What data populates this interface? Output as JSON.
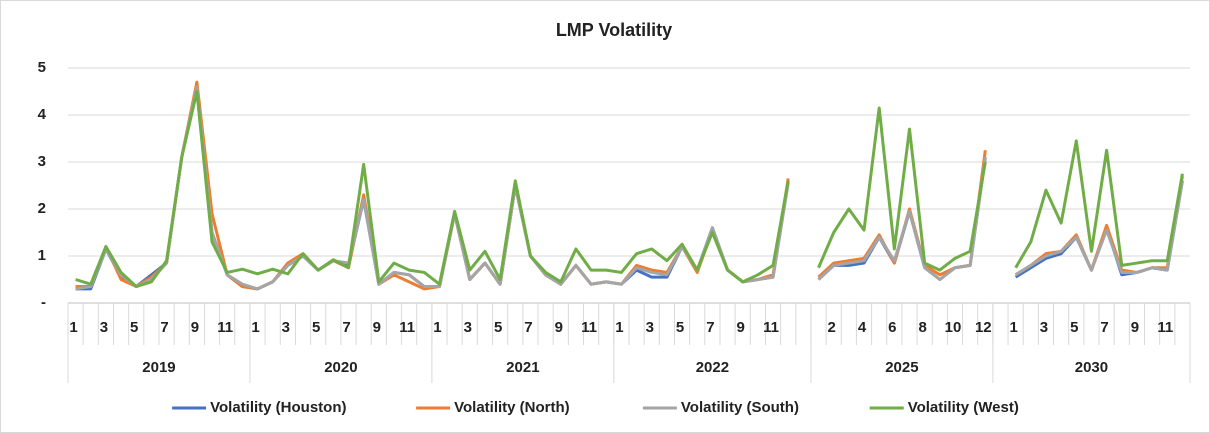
{
  "chart_data": {
    "type": "line",
    "title": "LMP Volatility",
    "categories": [
      "1",
      null,
      "3",
      null,
      "5",
      null,
      "7",
      null,
      "9",
      null,
      "11",
      null,
      "1",
      null,
      "3",
      null,
      "5",
      null,
      "7",
      null,
      "9",
      null,
      "11",
      null,
      "1",
      null,
      "3",
      null,
      "5",
      null,
      "7",
      null,
      "9",
      null,
      "11",
      null,
      "1",
      null,
      "3",
      null,
      "5",
      null,
      "7",
      null,
      "9",
      null,
      "11",
      null,
      null,
      null,
      "2",
      null,
      "4",
      null,
      "6",
      null,
      "8",
      null,
      "10",
      null,
      "12",
      null,
      "1",
      null,
      "3",
      null,
      "5",
      null,
      "7",
      null,
      "9",
      null,
      "11",
      null
    ],
    "groups": [
      {
        "label": "2019",
        "count": 12
      },
      {
        "label": "2020",
        "count": 12
      },
      {
        "label": "2021",
        "count": 12
      },
      {
        "label": "2022",
        "count": 13
      },
      {
        "label": "2025",
        "count": 12
      },
      {
        "label": "2030",
        "count": 13
      }
    ],
    "series": [
      {
        "name": "Volatility (Houston)",
        "color": "#4472c4",
        "values": [
          0.3,
          0.3,
          1.15,
          0.55,
          0.35,
          0.6,
          0.85,
          3.1,
          4.65,
          1.5,
          0.6,
          0.35,
          0.3,
          0.45,
          0.8,
          1.0,
          0.7,
          0.9,
          0.8,
          2.2,
          0.4,
          0.65,
          0.6,
          0.35,
          0.35,
          1.9,
          0.5,
          0.85,
          0.4,
          2.5,
          1.0,
          0.6,
          0.4,
          0.8,
          0.4,
          0.45,
          0.4,
          0.7,
          0.55,
          0.55,
          1.2,
          0.7,
          1.6,
          0.7,
          0.45,
          0.5,
          0.55,
          2.6,
          null,
          0.5,
          0.8,
          0.8,
          0.85,
          1.4,
          0.85,
          1.95,
          0.75,
          0.5,
          0.75,
          0.8,
          3.1,
          null,
          0.55,
          0.75,
          0.95,
          1.05,
          1.4,
          0.7,
          1.6,
          0.6,
          0.65,
          0.75,
          0.7,
          2.6
        ]
      },
      {
        "name": "Volatility (North)",
        "color": "#ed7d31",
        "values": [
          0.35,
          0.35,
          1.2,
          0.5,
          0.35,
          0.55,
          0.85,
          3.1,
          4.7,
          1.9,
          0.6,
          0.35,
          0.3,
          0.45,
          0.85,
          1.05,
          0.7,
          0.9,
          0.75,
          2.3,
          0.4,
          0.6,
          0.45,
          0.3,
          0.35,
          1.9,
          0.5,
          0.85,
          0.4,
          2.5,
          1.0,
          0.6,
          0.4,
          0.8,
          0.4,
          0.45,
          0.4,
          0.8,
          0.7,
          0.65,
          1.2,
          0.65,
          1.55,
          0.7,
          0.45,
          0.5,
          0.6,
          2.65,
          null,
          0.55,
          0.85,
          0.9,
          0.95,
          1.45,
          0.85,
          2.0,
          0.8,
          0.6,
          0.75,
          0.8,
          3.25,
          null,
          0.6,
          0.8,
          1.05,
          1.1,
          1.45,
          0.7,
          1.65,
          0.7,
          0.65,
          0.75,
          0.75,
          2.7
        ]
      },
      {
        "name": "Volatility (South)",
        "color": "#a5a5a5",
        "values": [
          0.3,
          0.35,
          1.15,
          0.6,
          0.35,
          0.5,
          0.85,
          3.1,
          4.6,
          1.5,
          0.6,
          0.4,
          0.3,
          0.45,
          0.8,
          1.0,
          0.7,
          0.9,
          0.85,
          2.2,
          0.4,
          0.65,
          0.6,
          0.35,
          0.35,
          1.9,
          0.5,
          0.85,
          0.4,
          2.5,
          1.0,
          0.6,
          0.4,
          0.8,
          0.4,
          0.45,
          0.4,
          0.75,
          0.65,
          0.6,
          1.2,
          0.7,
          1.6,
          0.7,
          0.45,
          0.5,
          0.55,
          2.55,
          null,
          0.5,
          0.8,
          0.85,
          0.9,
          1.4,
          0.9,
          1.95,
          0.75,
          0.5,
          0.75,
          0.8,
          3.1,
          null,
          0.6,
          0.8,
          1.0,
          1.1,
          1.4,
          0.7,
          1.55,
          0.65,
          0.65,
          0.75,
          0.7,
          2.6
        ]
      },
      {
        "name": "Volatility (West)",
        "color": "#70ad47",
        "values": [
          0.5,
          0.4,
          1.2,
          0.65,
          0.35,
          0.45,
          0.9,
          3.1,
          4.5,
          1.3,
          0.65,
          0.72,
          0.62,
          0.72,
          0.62,
          1.05,
          0.7,
          0.92,
          0.75,
          2.95,
          0.45,
          0.85,
          0.7,
          0.65,
          0.4,
          1.95,
          0.7,
          1.1,
          0.5,
          2.6,
          1.0,
          0.65,
          0.45,
          1.15,
          0.7,
          0.7,
          0.65,
          1.05,
          1.15,
          0.9,
          1.25,
          0.7,
          1.5,
          0.7,
          0.45,
          0.6,
          0.8,
          2.6,
          null,
          0.75,
          1.5,
          2.0,
          1.55,
          4.15,
          1.15,
          3.7,
          0.85,
          0.7,
          0.95,
          1.1,
          3.0,
          null,
          0.75,
          1.3,
          2.4,
          1.7,
          3.45,
          1.1,
          3.25,
          0.8,
          0.85,
          0.9,
          0.9,
          2.75
        ]
      }
    ],
    "ylim": [
      0,
      5
    ],
    "yticks": [
      {
        "value": 0,
        "label": "-"
      },
      1,
      2,
      3,
      4,
      5
    ],
    "grid": true,
    "legend": "bottom"
  }
}
